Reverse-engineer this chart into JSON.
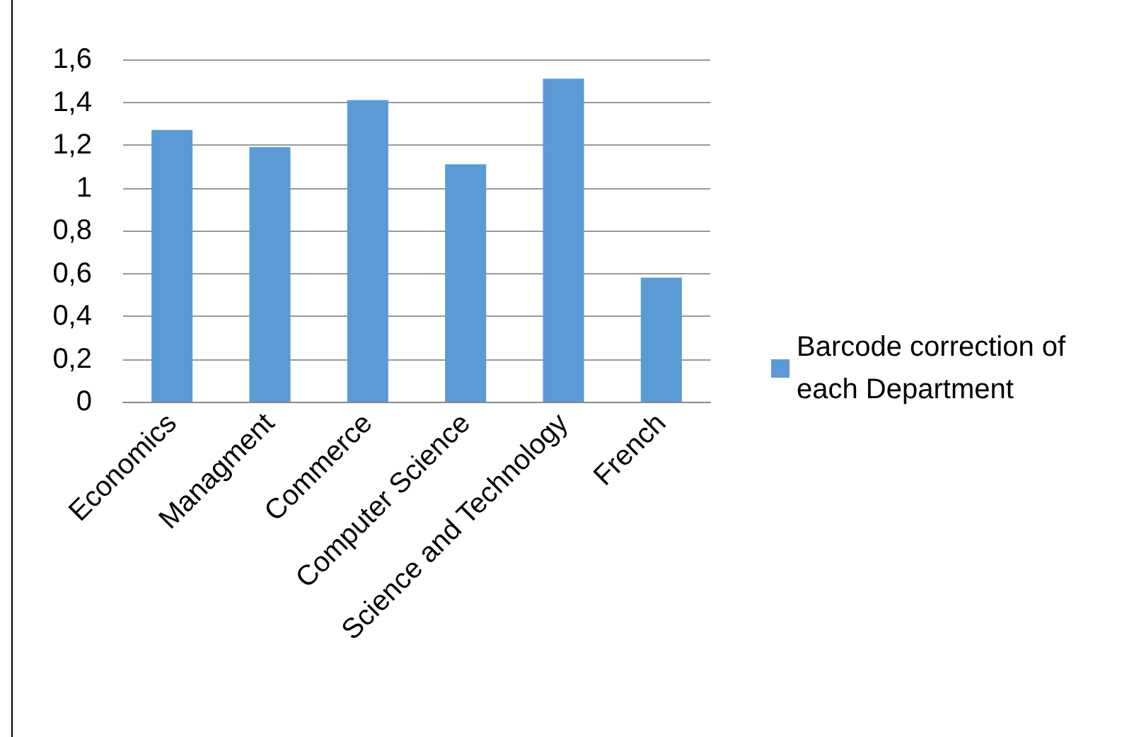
{
  "chart_data": {
    "type": "bar",
    "categories": [
      "Economics",
      "Managment",
      "Commerce",
      "Computer Science",
      "Science and Technology",
      "French"
    ],
    "series": [
      {
        "name": "Barcode correction of each Department",
        "color": "#5b9bd5",
        "values": [
          1.27,
          1.19,
          1.41,
          1.11,
          1.51,
          0.58
        ]
      }
    ],
    "ylim": [
      0,
      1.6
    ],
    "yticks": [
      {
        "value": 0,
        "label": "0"
      },
      {
        "value": 0.2,
        "label": "0,2"
      },
      {
        "value": 0.4,
        "label": "0,4"
      },
      {
        "value": 0.6,
        "label": "0,6"
      },
      {
        "value": 0.8,
        "label": "0,8"
      },
      {
        "value": 1,
        "label": "1"
      },
      {
        "value": 1.2,
        "label": "1,2"
      },
      {
        "value": 1.4,
        "label": "1,4"
      },
      {
        "value": 1.6,
        "label": "1,6"
      }
    ],
    "grid": "y",
    "legend": "right"
  }
}
